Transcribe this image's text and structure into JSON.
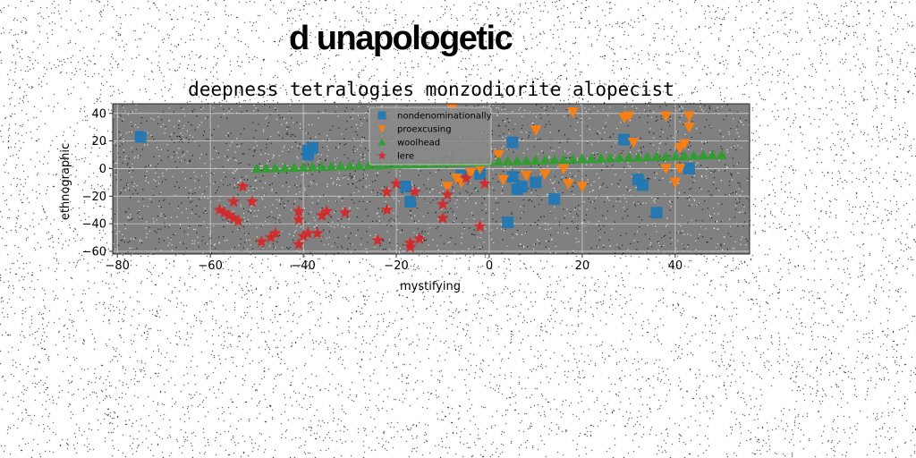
{
  "suptitle": "d unapologetic",
  "chart_data": {
    "type": "scatter",
    "title": "deepness tetralogies monzodiorite alopecist",
    "xlabel": "mystifying",
    "ylabel": "ethnographic",
    "xlim": [
      -81,
      56
    ],
    "ylim": [
      -62,
      47
    ],
    "xticks": [
      -80,
      -60,
      -40,
      -20,
      0,
      20,
      40
    ],
    "yticks": [
      -60,
      -40,
      -20,
      0,
      20,
      40
    ],
    "grid": true,
    "legend_position": "upper center",
    "plot_background": "#808080",
    "series": [
      {
        "name": "nondenominationally",
        "marker": "square",
        "color": "#1f77b4",
        "points": [
          [
            -75,
            23
          ],
          [
            -39,
            13
          ],
          [
            -38,
            15
          ],
          [
            -39,
            10
          ],
          [
            -18,
            -13
          ],
          [
            -17,
            -24
          ],
          [
            -6,
            -5
          ],
          [
            -2,
            -4
          ],
          [
            4,
            -39
          ],
          [
            5,
            19
          ],
          [
            6,
            -15
          ],
          [
            5,
            -6
          ],
          [
            7,
            -13
          ],
          [
            10,
            -10
          ],
          [
            14,
            -22
          ],
          [
            29,
            21
          ],
          [
            32,
            -8
          ],
          [
            33,
            -12
          ],
          [
            36,
            -32
          ],
          [
            43,
            0
          ]
        ]
      },
      {
        "name": "proexcusing",
        "marker": "triangle-down",
        "color": "#ff7f0e",
        "points": [
          [
            -9,
            -13
          ],
          [
            -7,
            -7
          ],
          [
            -6,
            -10
          ],
          [
            -8,
            44
          ],
          [
            -4,
            -3
          ],
          [
            -2,
            0
          ],
          [
            2,
            10
          ],
          [
            3,
            -8
          ],
          [
            8,
            -5
          ],
          [
            10,
            28
          ],
          [
            12,
            -4
          ],
          [
            16,
            0
          ],
          [
            17,
            -11
          ],
          [
            18,
            41
          ],
          [
            20,
            -13
          ],
          [
            29,
            37
          ],
          [
            30,
            38
          ],
          [
            31,
            19
          ],
          [
            38,
            38
          ],
          [
            38,
            0
          ],
          [
            40,
            -10
          ],
          [
            41,
            15
          ],
          [
            42,
            18
          ],
          [
            43,
            30
          ],
          [
            43,
            38
          ],
          [
            41,
            0
          ]
        ]
      },
      {
        "name": "woolhead",
        "marker": "triangle-up",
        "color": "#2ca02c",
        "points": [
          [
            -50,
            0
          ],
          [
            -48,
            0.2
          ],
          [
            -46,
            0.4
          ],
          [
            -44,
            0.6
          ],
          [
            -42,
            0.8
          ],
          [
            -40,
            1
          ],
          [
            -38,
            1.2
          ],
          [
            -36,
            1.4
          ],
          [
            -34,
            1.6
          ],
          [
            -32,
            1.8
          ],
          [
            -30,
            2
          ],
          [
            -28,
            2.2
          ],
          [
            -26,
            2.4
          ],
          [
            -24,
            2.6
          ],
          [
            -22,
            2.8
          ],
          [
            -20,
            3
          ],
          [
            -18,
            3.2
          ],
          [
            -16,
            3.4
          ],
          [
            -14,
            3.6
          ],
          [
            -12,
            3.8
          ],
          [
            -10,
            4
          ],
          [
            -8,
            4.2
          ],
          [
            -6,
            4.4
          ],
          [
            -4,
            4.6
          ],
          [
            -2,
            4.8
          ],
          [
            0,
            5
          ],
          [
            2,
            5.2
          ],
          [
            4,
            5.4
          ],
          [
            6,
            5.6
          ],
          [
            8,
            5.8
          ],
          [
            10,
            6
          ],
          [
            12,
            6.2
          ],
          [
            14,
            6.4
          ],
          [
            16,
            6.6
          ],
          [
            18,
            6.8
          ],
          [
            20,
            7
          ],
          [
            22,
            7.2
          ],
          [
            24,
            7.4
          ],
          [
            26,
            7.6
          ],
          [
            28,
            7.8
          ],
          [
            30,
            8
          ],
          [
            32,
            8.2
          ],
          [
            34,
            8.4
          ],
          [
            36,
            8.6
          ],
          [
            38,
            8.8
          ],
          [
            40,
            9
          ],
          [
            42,
            9.2
          ],
          [
            44,
            9.4
          ],
          [
            46,
            9.6
          ],
          [
            48,
            9.8
          ],
          [
            50,
            10
          ]
        ]
      },
      {
        "name": "lere",
        "marker": "star",
        "color": "#d62728",
        "points": [
          [
            -58,
            -30
          ],
          [
            -57,
            -32
          ],
          [
            -56,
            -34
          ],
          [
            -55,
            -36
          ],
          [
            -55,
            -24
          ],
          [
            -54,
            -38
          ],
          [
            -53,
            -13
          ],
          [
            -51,
            -24
          ],
          [
            -49,
            -53
          ],
          [
            -47,
            -50
          ],
          [
            -46,
            -47
          ],
          [
            -41,
            -31
          ],
          [
            -41,
            -37
          ],
          [
            -41,
            -55
          ],
          [
            -40,
            -49
          ],
          [
            -39,
            -47
          ],
          [
            -37,
            -47
          ],
          [
            -36,
            -34
          ],
          [
            -35,
            -31
          ],
          [
            -31,
            -32
          ],
          [
            -24,
            -52
          ],
          [
            -22,
            -30
          ],
          [
            -22,
            -17
          ],
          [
            -20,
            -11
          ],
          [
            -17,
            -54
          ],
          [
            -17,
            -57
          ],
          [
            -16,
            -17
          ],
          [
            -15,
            -51
          ],
          [
            -10,
            -26
          ],
          [
            -10,
            -36
          ],
          [
            -2,
            -42
          ],
          [
            -1,
            -11
          ],
          [
            -5,
            -7
          ],
          [
            -9,
            -19
          ]
        ]
      }
    ]
  }
}
